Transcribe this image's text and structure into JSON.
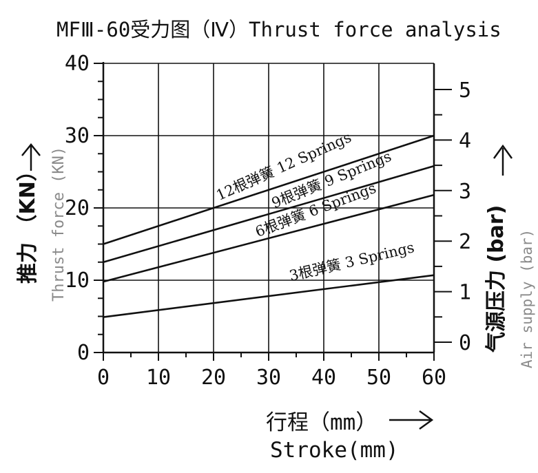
{
  "title": "MFⅢ-60受力图（Ⅳ）Thrust force analysis",
  "x_label_cn": "行程（mm）",
  "x_label_en": "Stroke(mm)",
  "y_label_cn": "推力 （KN）",
  "y_label_en": "Thrust force (KN)",
  "y2_label_cn": "气源压力 (bar)",
  "y2_label_en": "Air supply (bar)",
  "colors": {
    "line": "#111111",
    "grid": "#111111",
    "secondary_text": "#8a8a8a"
  },
  "chart_data": {
    "type": "line",
    "x": [
      0,
      60
    ],
    "xlim": [
      0,
      60
    ],
    "ylim": [
      0,
      40
    ],
    "y2lim": [
      0,
      5
    ],
    "x_ticks": [
      "0",
      "10",
      "20",
      "30",
      "40",
      "50",
      "60"
    ],
    "y_ticks": [
      "0",
      "10",
      "20",
      "30",
      "40"
    ],
    "y2_ticks": [
      "0",
      "1",
      "2",
      "3",
      "4",
      "5"
    ],
    "grid": true,
    "series": [
      {
        "name": "12根弹簧 12 Springs",
        "values": [
          15,
          30
        ]
      },
      {
        "name": "9根弹簧 9 Springs",
        "values": [
          12.5,
          25.8
        ]
      },
      {
        "name": "6根弹簧 6 Springs",
        "values": [
          9.8,
          21.8
        ]
      },
      {
        "name": "3根弹簧 3 Springs",
        "values": [
          4.9,
          10.7
        ]
      }
    ]
  }
}
